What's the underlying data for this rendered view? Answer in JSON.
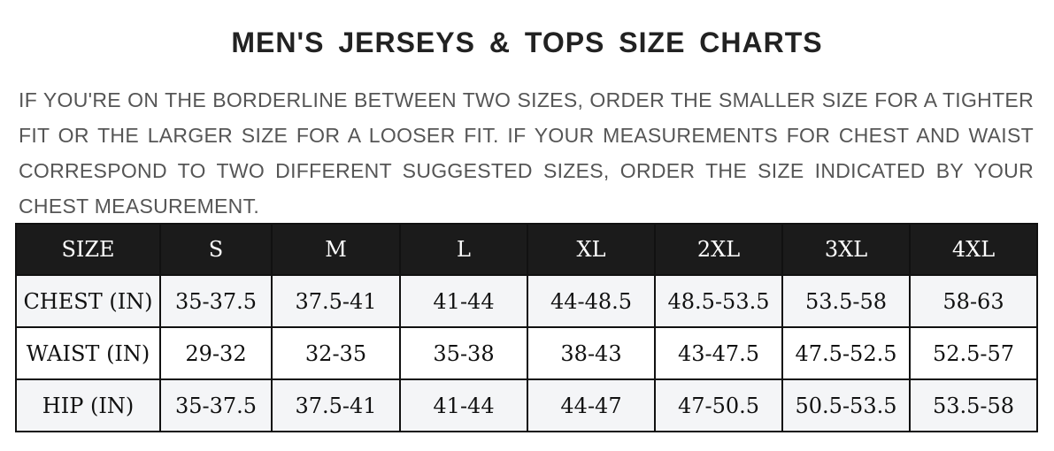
{
  "title": "MEN'S JERSEYS & TOPS SIZE CHARTS",
  "note": "IF YOU'RE ON THE BORDERLINE BETWEEN TWO SIZES, ORDER THE SMALLER SIZE FOR A TIGHTER FIT OR THE LARGER SIZE FOR A LOOSER FIT. IF YOUR MEASUREMENTS FOR CHEST AND WAIST CORRESPOND TO TWO DIFFERENT SUGGESTED SIZES, ORDER THE SIZE INDICATED BY YOUR CHEST MEASUREMENT.",
  "table": {
    "headers": [
      "SIZE",
      "S",
      "M",
      "L",
      "XL",
      "2XL",
      "3XL",
      "4XL"
    ],
    "rows": [
      [
        "CHEST (IN)",
        "35-37.5",
        "37.5-41",
        "41-44",
        "44-48.5",
        "48.5-53.5",
        "53.5-58",
        "58-63"
      ],
      [
        "WAIST (IN)",
        "29-32",
        "32-35",
        "35-38",
        "38-43",
        "43-47.5",
        "47.5-52.5",
        "52.5-57"
      ],
      [
        "HIP (IN)",
        "35-37.5",
        "37.5-41",
        "41-44",
        "44-47",
        "47-50.5",
        "50.5-53.5",
        "53.5-58"
      ]
    ]
  }
}
